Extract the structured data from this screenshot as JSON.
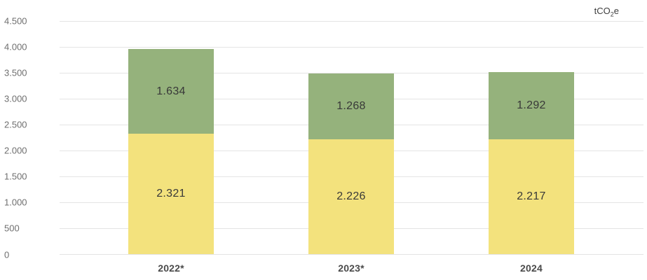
{
  "unit": {
    "prefix": "tCO",
    "sub": "2",
    "suffix": "e"
  },
  "chart_data": {
    "type": "bar",
    "stacked": true,
    "title": "",
    "unit": "tCO2e",
    "categories": [
      "2022*",
      "2023*",
      "2024"
    ],
    "series": [
      {
        "name": "yellow",
        "color": "#F3E27D",
        "values": [
          2321,
          2226,
          2217
        ],
        "labels": [
          "2.321",
          "2.226",
          "2.217"
        ]
      },
      {
        "name": "green",
        "color": "#95B27C",
        "values": [
          1634,
          1268,
          1292
        ],
        "labels": [
          "1.634",
          "1.268",
          "1.292"
        ]
      }
    ],
    "totals": [
      3955,
      3494,
      3509
    ],
    "ylim": [
      0,
      4500
    ],
    "ytick_step": 500,
    "ytick_labels": [
      "0",
      "500",
      "1.000",
      "1.500",
      "2.000",
      "2.500",
      "3.000",
      "3.500",
      "4.000",
      "4.500"
    ],
    "grid": true,
    "legend": "none"
  }
}
